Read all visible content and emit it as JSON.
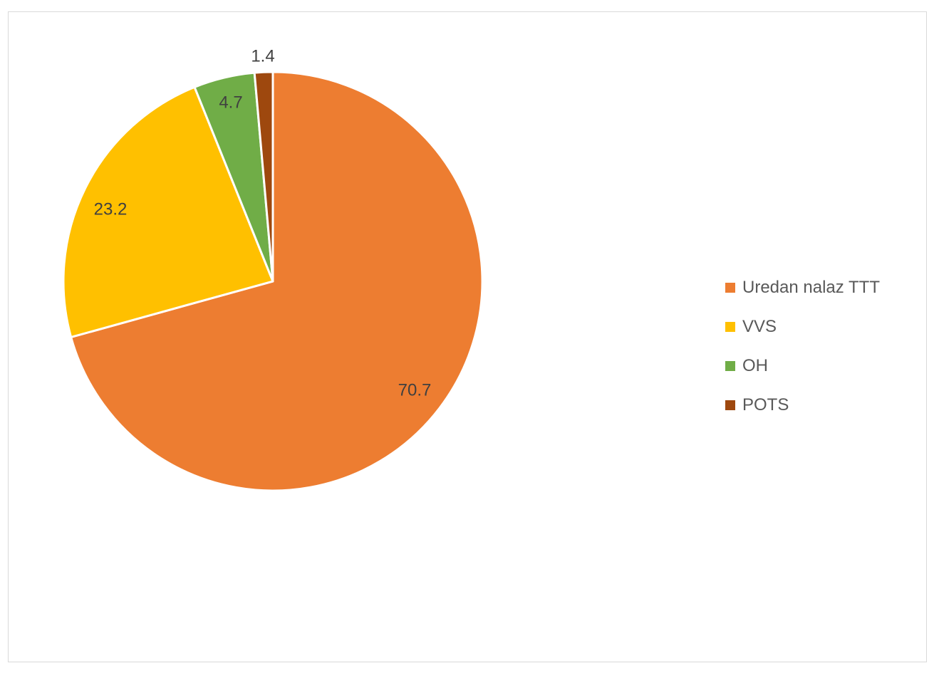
{
  "chart_data": {
    "type": "pie",
    "title": "",
    "series": [
      {
        "values": [
          70.7,
          23.2,
          4.7,
          1.4
        ]
      }
    ],
    "categories": [
      "Uredan nalaz TTT",
      "VVS",
      "OH",
      "POTS"
    ],
    "slices": [
      {
        "label": "Uredan nalaz TTT",
        "value": 70.7,
        "value_label": "70.7",
        "color": "#ED7D31"
      },
      {
        "label": "VVS",
        "value": 23.2,
        "value_label": "23.2",
        "color": "#FFC000"
      },
      {
        "label": "OH",
        "value": 4.7,
        "value_label": "4.7",
        "color": "#70AD47"
      },
      {
        "label": "POTS",
        "value": 1.4,
        "value_label": "1.4",
        "color": "#9E480E"
      }
    ],
    "start_angle_deg": 0,
    "direction": "clockwise",
    "legend_position": "right"
  }
}
